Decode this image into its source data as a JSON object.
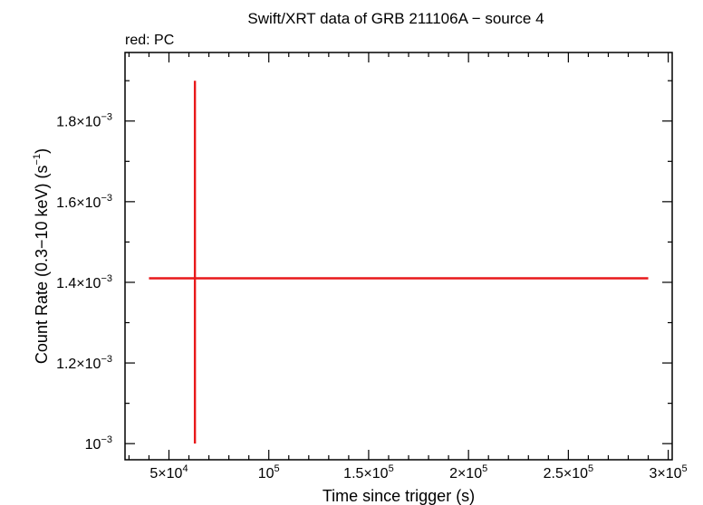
{
  "chart_data": {
    "type": "scatter",
    "title": "Swift/XRT data of GRB 211106A − source 4",
    "subtitle": "red: PC",
    "xlabel": "Time since trigger (s)",
    "ylabel": {
      "main": "Count Rate (0.3−10 keV) (s",
      "exp": "−1",
      "close": ")"
    },
    "xlim": [
      28000,
      302000
    ],
    "ylim": [
      0.00096,
      0.00197
    ],
    "grid": false,
    "series": [
      {
        "name": "PC",
        "color": "#e8191b",
        "points": [
          {
            "x": 63000,
            "y": 0.00141,
            "xerr": [
              40000,
              290000
            ],
            "yerr": [
              0.001,
              0.0019
            ]
          }
        ]
      }
    ],
    "x_ticks": [
      {
        "value": 50000,
        "mant": "5×10",
        "exp": "4"
      },
      {
        "value": 100000,
        "mant": "10",
        "exp": "5"
      },
      {
        "value": 150000,
        "mant": "1.5×10",
        "exp": "5"
      },
      {
        "value": 200000,
        "mant": "2×10",
        "exp": "5"
      },
      {
        "value": 250000,
        "mant": "2.5×10",
        "exp": "5"
      },
      {
        "value": 300000,
        "mant": "3×10",
        "exp": "5"
      }
    ],
    "x_minor_step": 10000,
    "y_ticks": [
      {
        "value": 0.001,
        "mant": "10",
        "exp": "−3"
      },
      {
        "value": 0.0012,
        "mant": "1.2×10",
        "exp": "−3"
      },
      {
        "value": 0.0014,
        "mant": "1.4×10",
        "exp": "−3"
      },
      {
        "value": 0.0016,
        "mant": "1.6×10",
        "exp": "−3"
      },
      {
        "value": 0.0018,
        "mant": "1.8×10",
        "exp": "−3"
      }
    ],
    "y_minor_step": 0.0001
  }
}
